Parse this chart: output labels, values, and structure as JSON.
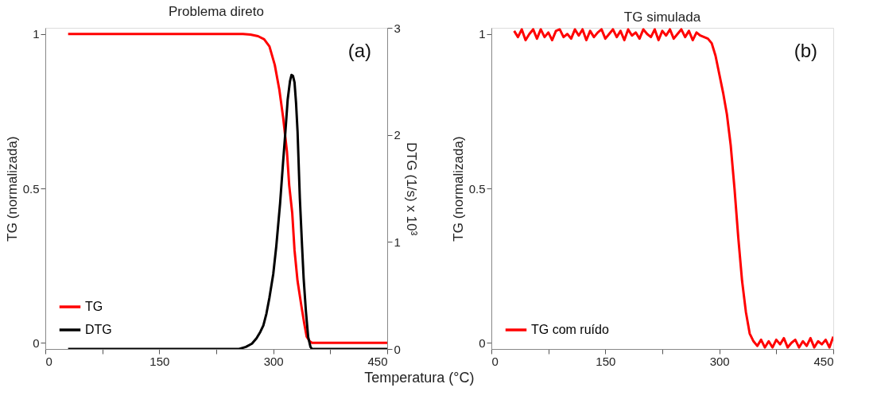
{
  "chart_data": [
    {
      "type": "line",
      "title": "Problema direto",
      "xlabel": "Temperatura (°C)",
      "ylabel": "TG (normalizada)",
      "y2label": "DTG (1/s) x 10³",
      "xlim": [
        0,
        450
      ],
      "xticks": [
        0,
        {
          "value": 75,
          "label": null
        },
        150,
        {
          "value": 225,
          "label": null
        },
        300,
        {
          "value": 375,
          "label": null
        },
        450
      ],
      "ylim": [
        -0.02,
        1.02
      ],
      "yticks": [
        0,
        0.5,
        1
      ],
      "y2lim": [
        0,
        3
      ],
      "y2ticks": [
        0,
        1,
        2,
        3
      ],
      "legend": "bottom left",
      "grid": false,
      "annotations": [
        "(a)"
      ],
      "series": [
        {
          "name": "TG",
          "color": "#ff0000",
          "x": [
            30,
            260,
            270,
            280,
            288,
            295,
            302,
            308,
            313,
            318,
            321,
            325,
            328,
            332,
            337,
            341,
            344,
            348,
            351,
            360,
            450
          ],
          "values": [
            1,
            1,
            0.998,
            0.993,
            0.983,
            0.96,
            0.9,
            0.82,
            0.73,
            0.62,
            0.51,
            0.42,
            0.3,
            0.2,
            0.12,
            0.06,
            0.02,
            0.005,
            0,
            0,
            0
          ]
        },
        {
          "name": "DTG",
          "color": "#000000",
          "axis": "y2",
          "x": [
            30,
            255,
            264,
            272,
            278,
            283,
            287,
            291,
            295,
            300,
            304,
            309,
            313,
            316,
            319,
            322,
            324,
            326,
            328,
            330,
            332,
            335,
            338,
            340,
            343,
            346,
            349,
            351,
            450
          ],
          "values": [
            0,
            0,
            0.02,
            0.05,
            0.1,
            0.16,
            0.22,
            0.33,
            0.48,
            0.7,
            0.96,
            1.36,
            1.75,
            2.03,
            2.33,
            2.5,
            2.56,
            2.55,
            2.49,
            2.3,
            2.03,
            1.41,
            0.95,
            0.66,
            0.35,
            0.11,
            0.02,
            0,
            0
          ]
        }
      ]
    },
    {
      "type": "line",
      "title": "TG simulada",
      "ylabel": "TG (normalizada)",
      "xlim": [
        0,
        450
      ],
      "xticks": [
        0,
        {
          "value": 75,
          "label": null
        },
        150,
        {
          "value": 225,
          "label": null
        },
        300,
        {
          "value": 375,
          "label": null
        },
        450
      ],
      "ylim": [
        -0.02,
        1.02
      ],
      "yticks": [
        0,
        0.5,
        1
      ],
      "legend": "bottom left",
      "grid": false,
      "annotations": [
        "(b)"
      ],
      "series": [
        {
          "name": "TG com ruído",
          "color": "#ff0000",
          "x": [
            30,
            35,
            40,
            45,
            50,
            55,
            60,
            65,
            70,
            75,
            80,
            85,
            90,
            95,
            100,
            105,
            110,
            115,
            120,
            125,
            130,
            135,
            140,
            145,
            150,
            155,
            160,
            165,
            170,
            175,
            180,
            185,
            190,
            195,
            200,
            205,
            210,
            215,
            220,
            225,
            230,
            235,
            240,
            245,
            250,
            255,
            260,
            265,
            270,
            275,
            280,
            285,
            290,
            295,
            300,
            305,
            310,
            315,
            320,
            325,
            330,
            335,
            340,
            345,
            350,
            355,
            360,
            365,
            370,
            375,
            380,
            385,
            390,
            395,
            400,
            405,
            410,
            415,
            420,
            425,
            430,
            435,
            440,
            445,
            450
          ],
          "values": [
            1.01,
            0.99,
            1.015,
            0.98,
            1.0,
            1.015,
            0.985,
            1.015,
            0.99,
            1.005,
            0.98,
            1.01,
            1.015,
            0.99,
            1.0,
            0.985,
            1.015,
            0.995,
            1.015,
            0.98,
            1.01,
            0.99,
            1.005,
            1.015,
            0.985,
            1.0,
            1.015,
            0.99,
            1.01,
            0.98,
            1.015,
            0.995,
            1.005,
            0.985,
            1.015,
            1.0,
            0.99,
            1.015,
            0.98,
            1.01,
            0.995,
            1.015,
            0.985,
            1.0,
            1.015,
            0.99,
            1.01,
            0.98,
            1.005,
            0.995,
            0.99,
            0.985,
            0.97,
            0.93,
            0.87,
            0.81,
            0.74,
            0.64,
            0.5,
            0.34,
            0.2,
            0.1,
            0.03,
            0.005,
            -0.01,
            0.01,
            -0.015,
            0.005,
            -0.015,
            0.01,
            -0.005,
            0.015,
            -0.015,
            0.0,
            0.01,
            -0.015,
            0.005,
            -0.01,
            0.015,
            -0.015,
            0.005,
            -0.005,
            0.01,
            -0.015,
            0.02
          ]
        }
      ]
    }
  ]
}
